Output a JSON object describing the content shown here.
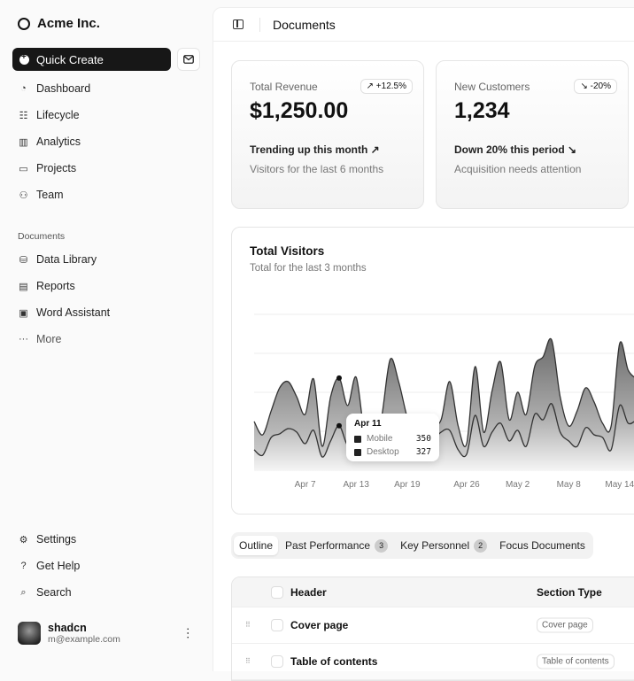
{
  "sidebar": {
    "brand": "Acme Inc.",
    "quick_create": "Quick Create",
    "nav": [
      {
        "label": "Dashboard",
        "icon": "gauge-icon"
      },
      {
        "label": "Lifecycle",
        "icon": "list-icon"
      },
      {
        "label": "Analytics",
        "icon": "bar-chart-icon"
      },
      {
        "label": "Projects",
        "icon": "folder-icon"
      },
      {
        "label": "Team",
        "icon": "users-icon"
      }
    ],
    "documents_label": "Documents",
    "documents": [
      {
        "label": "Data Library",
        "icon": "database-icon"
      },
      {
        "label": "Reports",
        "icon": "clipboard-icon"
      },
      {
        "label": "Word Assistant",
        "icon": "file-icon"
      },
      {
        "label": "More",
        "icon": "more-icon"
      }
    ],
    "footer": [
      {
        "label": "Settings",
        "icon": "gear-icon"
      },
      {
        "label": "Get Help",
        "icon": "help-icon"
      },
      {
        "label": "Search",
        "icon": "search-icon"
      }
    ],
    "user": {
      "name": "shadcn",
      "email": "m@example.com"
    }
  },
  "header": {
    "title": "Documents"
  },
  "kpis": [
    {
      "label": "Total Revenue",
      "value": "$1,250.00",
      "badge": "↗ +12.5%",
      "trend": "Trending up this month ↗",
      "sub": "Visitors for the last 6 months"
    },
    {
      "label": "New Customers",
      "value": "1,234",
      "badge": "↘ -20%",
      "trend": "Down 20% this period ↘",
      "sub": "Acquisition needs attention"
    }
  ],
  "chart_card": {
    "title": "Total Visitors",
    "subtitle": "Total for the last 3 months"
  },
  "chart_data": {
    "type": "area",
    "stacked": true,
    "x": [
      "Apr 1",
      "Apr 2",
      "Apr 3",
      "Apr 4",
      "Apr 5",
      "Apr 6",
      "Apr 7",
      "Apr 8",
      "Apr 9",
      "Apr 10",
      "Apr 11",
      "Apr 12",
      "Apr 13",
      "Apr 14",
      "Apr 15",
      "Apr 16",
      "Apr 17",
      "Apr 18",
      "Apr 19",
      "Apr 20",
      "Apr 21",
      "Apr 22",
      "Apr 23",
      "Apr 24",
      "Apr 25",
      "Apr 26",
      "Apr 27",
      "Apr 28",
      "Apr 29",
      "Apr 30",
      "May 1",
      "May 2",
      "May 3",
      "May 4",
      "May 5",
      "May 6",
      "May 7",
      "May 8",
      "May 9",
      "May 10",
      "May 11",
      "May 12",
      "May 13",
      "May 14",
      "May 15",
      "May 16"
    ],
    "series": [
      {
        "name": "Desktop",
        "values": [
          150,
          110,
          240,
          267,
          305,
          280,
          195,
          293,
          98,
          215,
          327,
          182,
          208,
          175,
          110,
          175,
          280,
          240,
          175,
          130,
          163,
          215,
          280,
          293,
          150,
          117,
          403,
          175,
          280,
          345,
          215,
          293,
          175,
          410,
          371,
          488,
          280,
          215,
          175,
          312,
          260,
          240,
          150,
          475,
          345,
          371
        ]
      },
      {
        "name": "Mobile",
        "values": [
          208,
          150,
          195,
          338,
          345,
          260,
          215,
          377,
          78,
          325,
          350,
          293,
          475,
          85,
          40,
          215,
          533,
          410,
          215,
          85,
          117,
          110,
          91,
          358,
          175,
          78,
          358,
          104,
          305,
          449,
          156,
          280,
          234,
          351,
          462,
          468,
          260,
          110,
          260,
          293,
          240,
          104,
          175,
          455,
          390,
          299
        ]
      }
    ],
    "x_ticks": [
      "Apr 7",
      "Apr 13",
      "Apr 19",
      "Apr 26",
      "May 2",
      "May 8",
      "May 14"
    ],
    "ylim": [
      0,
      1144
    ],
    "grid": true,
    "tooltip": {
      "date": "Apr 11",
      "rows": [
        {
          "name": "Mobile",
          "value": "350"
        },
        {
          "name": "Desktop",
          "value": "327"
        }
      ]
    }
  },
  "tabs": [
    {
      "label": "Outline",
      "active": true
    },
    {
      "label": "Past Performance",
      "count": "3"
    },
    {
      "label": "Key Personnel",
      "count": "2"
    },
    {
      "label": "Focus Documents"
    }
  ],
  "table": {
    "columns": [
      "Header",
      "Section Type"
    ],
    "rows": [
      {
        "header": "Cover page",
        "type": "Cover page"
      },
      {
        "header": "Table of contents",
        "type": "Table of contents"
      }
    ]
  }
}
